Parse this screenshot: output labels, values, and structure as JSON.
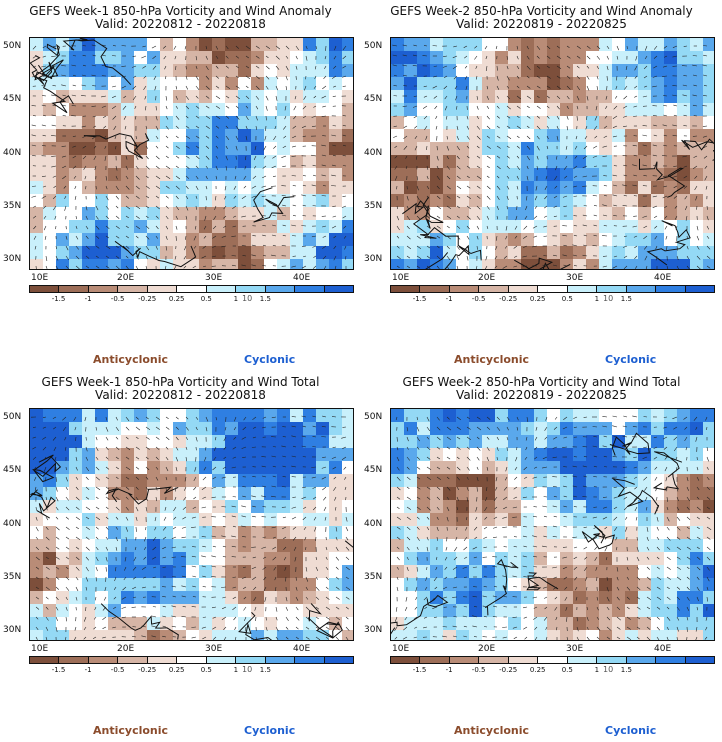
{
  "panels": [
    {
      "title": "GEFS Week-1 850-hPa Vorticity and Wind Anomaly",
      "valid": "Valid: 20220812 - 20220818"
    },
    {
      "title": "GEFS Week-2 850-hPa Vorticity and Wind Anomaly",
      "valid": "Valid: 20220819 - 20220825"
    },
    {
      "title": "GEFS Week-1 850-hPa Vorticity and Wind Total",
      "valid": "Valid: 20220812 - 20220818"
    },
    {
      "title": "GEFS Week-2 850-hPa Vorticity and Wind Total",
      "valid": "Valid: 20220819 - 20220825"
    }
  ],
  "lat_labels": [
    "50N",
    "45N",
    "40N",
    "35N",
    "30N"
  ],
  "lon_labels": [
    "10E",
    "20E",
    "30E",
    "40E"
  ],
  "colorbar": {
    "ticks": [
      "-1.5",
      "-1",
      "-0.5",
      "-0.25",
      "0.25",
      "0.5",
      "1",
      "1.5"
    ],
    "unit": "10",
    "colors": [
      "#7d4f3b",
      "#9d6e58",
      "#b98c77",
      "#d6b5a6",
      "#efdcd3",
      "#ffffff",
      "#c9f0fb",
      "#94d9f5",
      "#5aa8ec",
      "#2f7fe2",
      "#1d5fd1"
    ]
  },
  "legend": {
    "anticyclonic": "Anticyclonic",
    "cyclonic": "Cyclonic"
  }
}
